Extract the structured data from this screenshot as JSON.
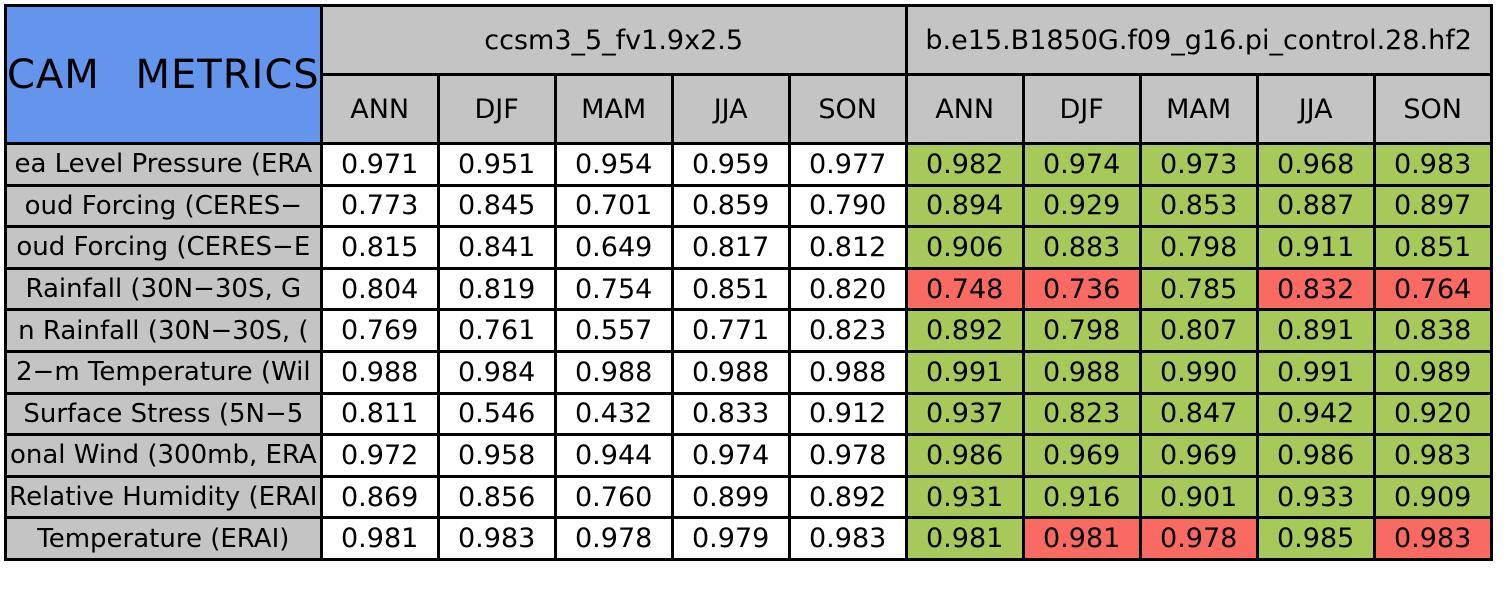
{
  "colors": {
    "title_bg": "#6495ED",
    "header_bg": "#C4C4C4",
    "good": "#A6C95A",
    "bad": "#F96A62",
    "border": "#000000",
    "plain_cell_bg": "#FFFFFF"
  },
  "chart_data": {
    "type": "table",
    "title": "CAM METRICS",
    "models": [
      "ccsm3_5_fv1.9x2.5",
      "b.e15.B1850G.f09_g16.pi_control.28.hf2"
    ],
    "seasons": [
      "ANN",
      "DJF",
      "MAM",
      "JJA",
      "SON"
    ],
    "layout_hints": {
      "model1_cells": "white background",
      "model2_cells": "green when flagged good, red when flagged bad",
      "row_labels_truncated": "label text is clipped at the cell edges in the source image"
    },
    "rows": [
      {
        "label": "ea Level Pressure (ERA",
        "model1": [
          "0.971",
          "0.951",
          "0.954",
          "0.959",
          "0.977"
        ],
        "model2": [
          "0.982",
          "0.974",
          "0.973",
          "0.968",
          "0.983"
        ],
        "model2_flags": [
          "good",
          "good",
          "good",
          "good",
          "good"
        ]
      },
      {
        "label": "oud Forcing (CERES−",
        "model1": [
          "0.773",
          "0.845",
          "0.701",
          "0.859",
          "0.790"
        ],
        "model2": [
          "0.894",
          "0.929",
          "0.853",
          "0.887",
          "0.897"
        ],
        "model2_flags": [
          "good",
          "good",
          "good",
          "good",
          "good"
        ]
      },
      {
        "label": "oud Forcing (CERES−E",
        "model1": [
          "0.815",
          "0.841",
          "0.649",
          "0.817",
          "0.812"
        ],
        "model2": [
          "0.906",
          "0.883",
          "0.798",
          "0.911",
          "0.851"
        ],
        "model2_flags": [
          "good",
          "good",
          "good",
          "good",
          "good"
        ]
      },
      {
        "label": "Rainfall (30N−30S, G",
        "model1": [
          "0.804",
          "0.819",
          "0.754",
          "0.851",
          "0.820"
        ],
        "model2": [
          "0.748",
          "0.736",
          "0.785",
          "0.832",
          "0.764"
        ],
        "model2_flags": [
          "bad",
          "bad",
          "good",
          "bad",
          "bad"
        ]
      },
      {
        "label": "n Rainfall (30N−30S, (",
        "model1": [
          "0.769",
          "0.761",
          "0.557",
          "0.771",
          "0.823"
        ],
        "model2": [
          "0.892",
          "0.798",
          "0.807",
          "0.891",
          "0.838"
        ],
        "model2_flags": [
          "good",
          "good",
          "good",
          "good",
          "good"
        ]
      },
      {
        "label": "2−m Temperature (Wil",
        "model1": [
          "0.988",
          "0.984",
          "0.988",
          "0.988",
          "0.988"
        ],
        "model2": [
          "0.991",
          "0.988",
          "0.990",
          "0.991",
          "0.989"
        ],
        "model2_flags": [
          "good",
          "good",
          "good",
          "good",
          "good"
        ]
      },
      {
        "label": "Surface Stress (5N−5",
        "model1": [
          "0.811",
          "0.546",
          "0.432",
          "0.833",
          "0.912"
        ],
        "model2": [
          "0.937",
          "0.823",
          "0.847",
          "0.942",
          "0.920"
        ],
        "model2_flags": [
          "good",
          "good",
          "good",
          "good",
          "good"
        ]
      },
      {
        "label": "onal Wind (300mb, ERA",
        "model1": [
          "0.972",
          "0.958",
          "0.944",
          "0.974",
          "0.978"
        ],
        "model2": [
          "0.986",
          "0.969",
          "0.969",
          "0.986",
          "0.983"
        ],
        "model2_flags": [
          "good",
          "good",
          "good",
          "good",
          "good"
        ]
      },
      {
        "label": "Relative Humidity (ERAI",
        "model1": [
          "0.869",
          "0.856",
          "0.760",
          "0.899",
          "0.892"
        ],
        "model2": [
          "0.931",
          "0.916",
          "0.901",
          "0.933",
          "0.909"
        ],
        "model2_flags": [
          "good",
          "good",
          "good",
          "good",
          "good"
        ]
      },
      {
        "label": "Temperature (ERAI)",
        "model1": [
          "0.981",
          "0.983",
          "0.978",
          "0.979",
          "0.983"
        ],
        "model2": [
          "0.981",
          "0.981",
          "0.978",
          "0.985",
          "0.983"
        ],
        "model2_flags": [
          "good",
          "bad",
          "bad",
          "good",
          "bad"
        ]
      }
    ]
  }
}
